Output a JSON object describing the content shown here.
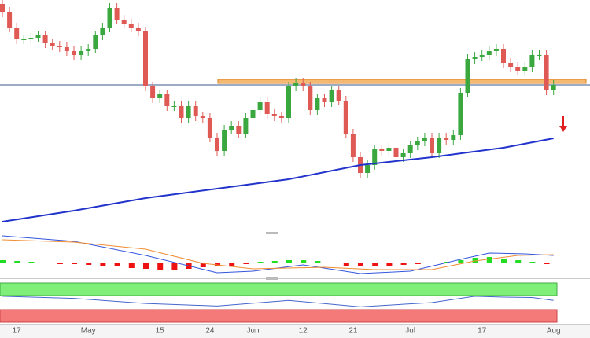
{
  "chart_data": {
    "type": "candlestick",
    "ylim": [
      0,
      295
    ],
    "categories": [
      null,
      null,
      "17",
      null,
      null,
      null,
      null,
      null,
      null,
      null,
      null,
      null,
      "May",
      null,
      null,
      null,
      null,
      null,
      null,
      null,
      null,
      null,
      "15",
      null,
      null,
      null,
      null,
      null,
      null,
      "24",
      null,
      null,
      null,
      null,
      null,
      "Jun",
      null,
      null,
      null,
      null,
      null,
      null,
      "12",
      null,
      null,
      null,
      null,
      null,
      null,
      "21",
      null,
      null,
      null,
      null,
      null,
      null,
      null,
      "Jul",
      null,
      null,
      null,
      null,
      null,
      null,
      null,
      null,
      null,
      "17",
      null,
      null,
      null,
      null,
      null,
      null,
      null,
      null,
      null,
      "Aug"
    ],
    "open": [
      290,
      280,
      260,
      245,
      245,
      247,
      250,
      240,
      237,
      235,
      230,
      225,
      230,
      233,
      250,
      260,
      285,
      270,
      265,
      260,
      255,
      185,
      170,
      175,
      160,
      160,
      145,
      160,
      147,
      145,
      120,
      103,
      130,
      135,
      125,
      145,
      155,
      165,
      150,
      147,
      145,
      185,
      190,
      185,
      155,
      170,
      165,
      180,
      167,
      125,
      95,
      75,
      85,
      105,
      103,
      107,
      95,
      100,
      110,
      115,
      120,
      100,
      120,
      117,
      123,
      177,
      220,
      223,
      225,
      230,
      233,
      215,
      210,
      205,
      210,
      225,
      225,
      180
    ],
    "high": [
      296,
      286,
      266,
      251,
      253,
      256,
      256,
      246,
      243,
      241,
      236,
      236,
      239,
      256,
      266,
      291,
      291,
      276,
      271,
      266,
      261,
      191,
      181,
      181,
      166,
      166,
      166,
      166,
      153,
      151,
      126,
      136,
      141,
      141,
      151,
      161,
      171,
      171,
      156,
      153,
      191,
      196,
      196,
      191,
      176,
      176,
      186,
      186,
      173,
      131,
      101,
      91,
      111,
      111,
      113,
      113,
      106,
      116,
      121,
      126,
      126,
      126,
      126,
      129,
      183,
      226,
      229,
      231,
      236,
      239,
      239,
      221,
      216,
      216,
      231,
      231,
      231,
      193
    ],
    "low": [
      274,
      254,
      239,
      239,
      239,
      241,
      234,
      231,
      229,
      224,
      219,
      219,
      224,
      227,
      244,
      254,
      264,
      259,
      254,
      249,
      179,
      164,
      164,
      154,
      154,
      139,
      139,
      141,
      139,
      114,
      97,
      97,
      124,
      119,
      119,
      139,
      149,
      144,
      141,
      139,
      139,
      179,
      179,
      149,
      149,
      159,
      159,
      161,
      119,
      89,
      69,
      69,
      79,
      97,
      97,
      89,
      89,
      94,
      104,
      109,
      94,
      94,
      111,
      111,
      117,
      171,
      214,
      217,
      219,
      224,
      209,
      204,
      199,
      199,
      204,
      219,
      174,
      174
    ],
    "close": [
      280,
      260,
      245,
      245,
      247,
      250,
      240,
      237,
      235,
      230,
      225,
      230,
      233,
      250,
      260,
      285,
      270,
      265,
      260,
      255,
      185,
      170,
      175,
      160,
      160,
      145,
      160,
      147,
      145,
      120,
      103,
      130,
      135,
      125,
      145,
      155,
      165,
      150,
      147,
      145,
      185,
      190,
      185,
      155,
      170,
      165,
      180,
      167,
      125,
      95,
      75,
      85,
      105,
      103,
      107,
      95,
      100,
      110,
      115,
      120,
      100,
      120,
      117,
      123,
      177,
      220,
      223,
      225,
      230,
      233,
      215,
      210,
      205,
      210,
      225,
      225,
      180,
      187
    ],
    "up_color": "#3aa83f",
    "down_color": "#e05a55",
    "moving_average": {
      "color": "#2233cc",
      "x": [
        0,
        10,
        20,
        30,
        40,
        50,
        60,
        70,
        77
      ],
      "values": [
        13,
        27,
        43,
        55,
        67,
        85,
        95,
        107,
        119
      ]
    },
    "level_line": {
      "value": 187,
      "color": "#3a5a8a"
    },
    "resistance_band": {
      "values": [
        189,
        194
      ],
      "color": "#f0a040"
    },
    "macd": {
      "ylim": [
        -17,
        37
      ],
      "line": {
        "color": "#3355dd",
        "x": [
          0,
          10,
          20,
          30,
          35,
          42,
          50,
          57,
          64,
          68,
          73,
          77
        ],
        "values": [
          35,
          28,
          10,
          -12,
          -10,
          -2,
          -13,
          -10,
          5,
          13,
          12,
          10
        ]
      },
      "signal": {
        "color": "#f08c30",
        "x": [
          0,
          10,
          20,
          28,
          35,
          45,
          52,
          60,
          66,
          72,
          77
        ],
        "values": [
          30,
          27,
          18,
          0,
          -7,
          -5,
          -8,
          -8,
          3,
          10,
          11
        ]
      },
      "histogram": {
        "x": [
          0,
          2,
          4,
          6,
          8,
          10,
          12,
          14,
          16,
          18,
          20,
          22,
          24,
          26,
          28,
          30,
          32,
          34,
          36,
          38,
          40,
          42,
          44,
          46,
          48,
          50,
          52,
          54,
          56,
          58,
          60,
          62,
          64,
          66,
          68,
          70,
          72,
          74,
          76
        ],
        "values": [
          4,
          3,
          2,
          1,
          -1,
          -1,
          -2,
          -3,
          -4,
          -6,
          -7,
          -8,
          -8,
          -7,
          -5,
          -4,
          -3,
          -1,
          2,
          3,
          4,
          4,
          3,
          1,
          -3,
          -4,
          -4,
          -3,
          -2,
          -1,
          1,
          2,
          4,
          7,
          8,
          6,
          4,
          2,
          -1
        ],
        "up_color": "#22dd22",
        "down_color": "#ee1111"
      }
    },
    "rsi": {
      "ylim": [
        0,
        100
      ],
      "color": "#4466cc",
      "x": [
        0,
        10,
        20,
        30,
        40,
        50,
        60,
        66,
        70,
        74,
        77
      ],
      "values": [
        65,
        60,
        48,
        42,
        55,
        40,
        50,
        65,
        63,
        62,
        55
      ]
    }
  }
}
